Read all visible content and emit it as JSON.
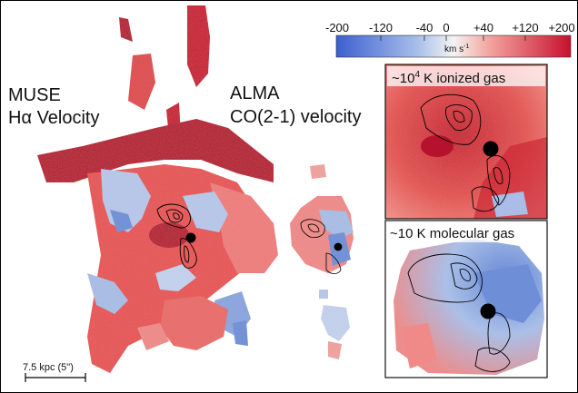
{
  "labels": {
    "muse_line1": "MUSE",
    "muse_line2": "Hα Velocity",
    "alma_line1": "ALMA",
    "alma_line2": "CO(2-1) velocity",
    "scale_bar": "7.5 kpc (5\")"
  },
  "colorbar": {
    "ticks": [
      "-200",
      "-120",
      "-40",
      "0",
      "+40",
      "+120",
      "+200"
    ],
    "unit": "km s",
    "unit_exp": "-1",
    "colors": {
      "blue": "#3c5fd0",
      "white": "#f4f4f4",
      "red": "#c8102e"
    }
  },
  "insets": {
    "top_label_pre": "~10",
    "top_label_exp": "4",
    "top_label_post": " K ionized gas",
    "bottom_label": "~10 K molecular gas"
  },
  "colors": {
    "redshift": "#d9343d",
    "redshift_light": "#ee8d8a",
    "redshift_dark": "#b5122d",
    "blueshift": "#6e8fd8",
    "blueshift_light": "#b7c8ea",
    "contour": "#000000"
  }
}
